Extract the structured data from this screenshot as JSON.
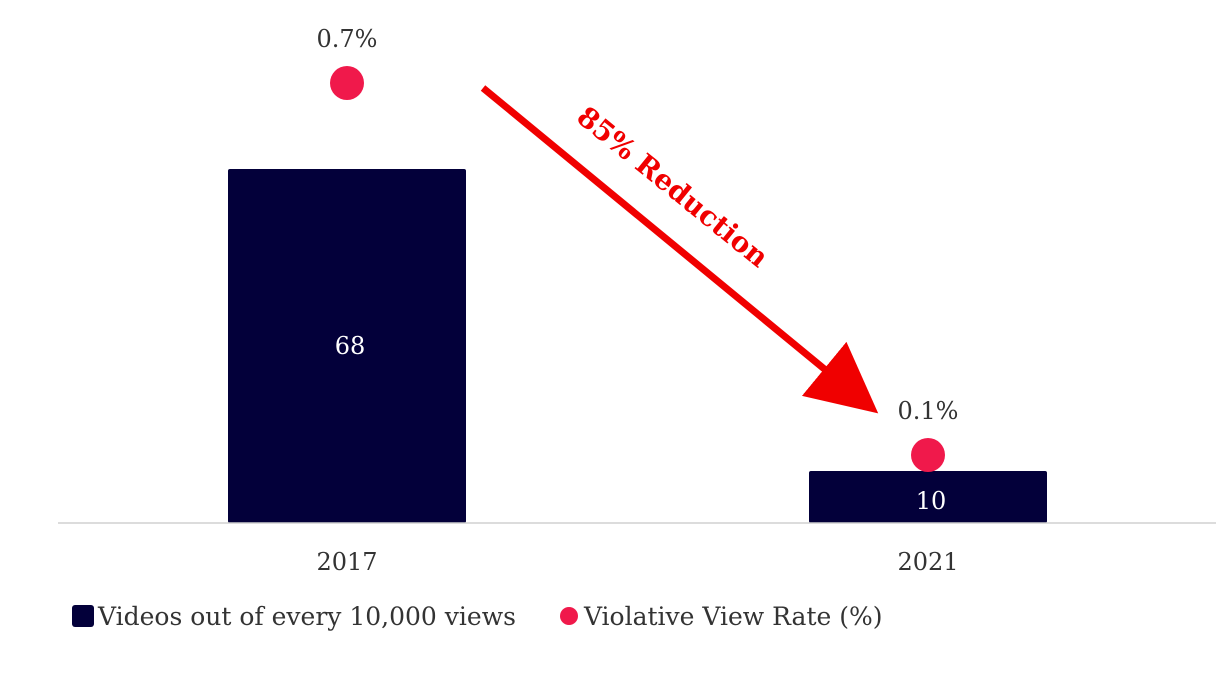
{
  "chart_data": {
    "type": "bar",
    "categories": [
      "2017",
      "2021"
    ],
    "series": [
      {
        "name": "Videos out of every 10,000 views",
        "type": "bar",
        "values": [
          68,
          10
        ],
        "color": "#03003a"
      },
      {
        "name": "Violative View Rate (%)",
        "type": "scatter",
        "values": [
          0.7,
          0.1
        ],
        "labels": [
          "0.7%",
          "0.1%"
        ],
        "color": "#f0194b"
      }
    ],
    "annotation": {
      "text": "85% Reduction",
      "color": "#f00000"
    },
    "legend_position": "bottom-left",
    "grid": false
  }
}
